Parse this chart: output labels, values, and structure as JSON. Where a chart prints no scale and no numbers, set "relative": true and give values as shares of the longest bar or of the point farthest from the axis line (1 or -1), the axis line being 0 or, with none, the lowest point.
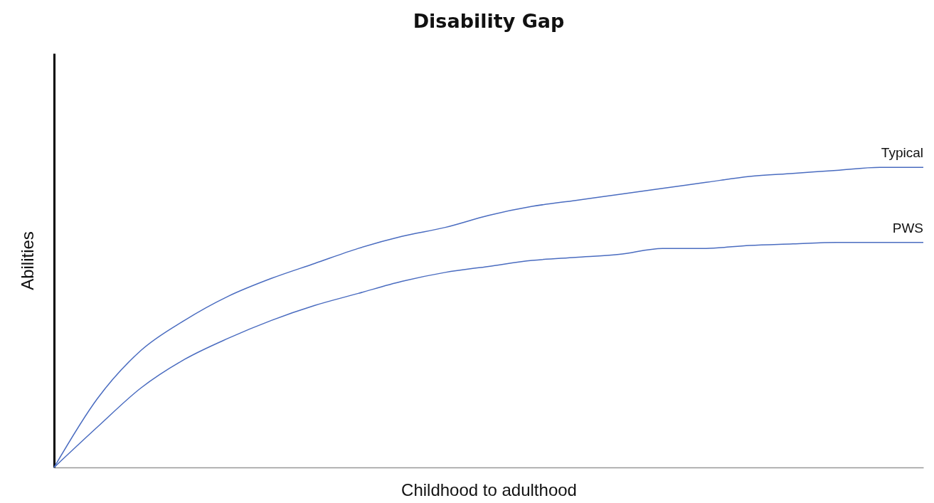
{
  "chart_data": {
    "type": "line",
    "title": "Disability Gap",
    "xlabel": "Childhood to adulthood",
    "ylabel": "Abilities",
    "relative": true,
    "grid": false,
    "legend": false,
    "categories": [
      null,
      null,
      null,
      null,
      null,
      null,
      null,
      null,
      null,
      null,
      null,
      null,
      null,
      null,
      null,
      null,
      null,
      null,
      null,
      null,
      null
    ],
    "series": [
      {
        "name": "Typical",
        "color": "#4a6cc0",
        "values": [
          0,
          0.23,
          0.39,
          0.49,
          0.57,
          0.63,
          0.68,
          0.73,
          0.77,
          0.8,
          0.84,
          0.87,
          0.89,
          0.91,
          0.93,
          0.95,
          0.97,
          0.98,
          0.99,
          1.0,
          1.0
        ]
      },
      {
        "name": "PWS",
        "color": "#4a6cc0",
        "values": [
          0,
          0.135,
          0.265,
          0.36,
          0.43,
          0.49,
          0.54,
          0.58,
          0.62,
          0.65,
          0.67,
          0.69,
          0.7,
          0.71,
          0.73,
          0.73,
          0.74,
          0.745,
          0.75,
          0.75,
          0.75
        ]
      }
    ]
  }
}
